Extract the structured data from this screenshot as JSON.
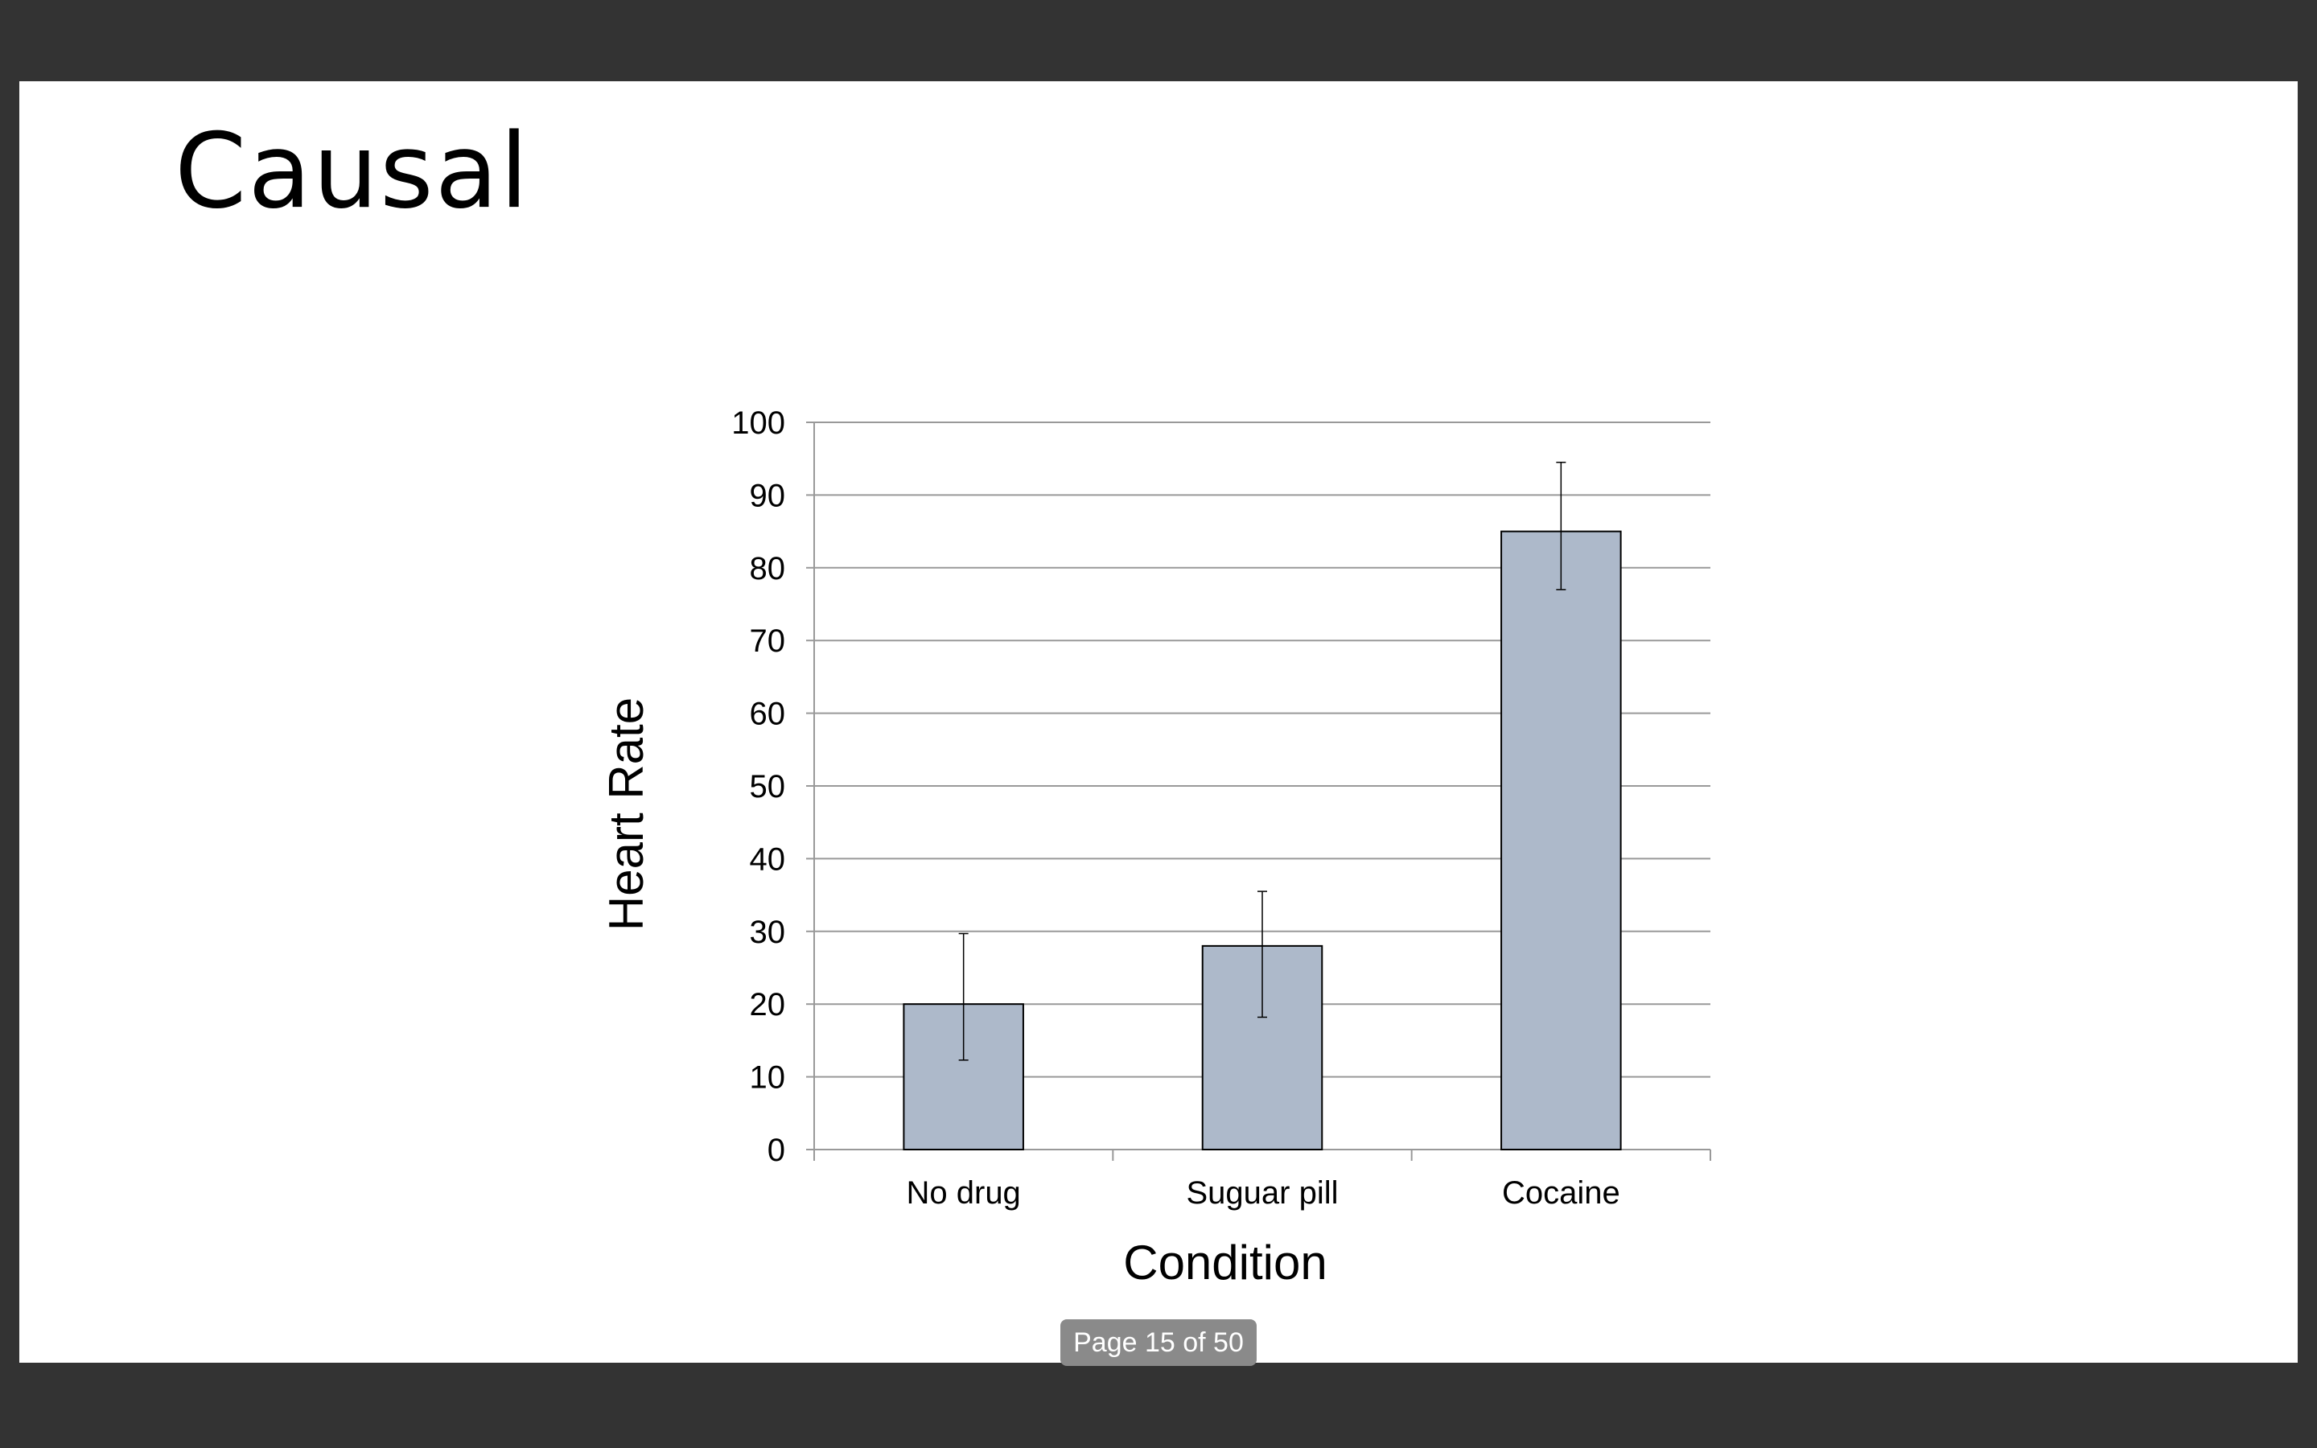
{
  "slide": {
    "title": "Causal"
  },
  "page_indicator": {
    "text": "Page 15 of 50"
  },
  "chart_data": {
    "type": "bar",
    "categories": [
      "No drug",
      "Suguar pill",
      "Cocaine"
    ],
    "values": [
      20,
      28,
      85
    ],
    "error_bars": [
      {
        "low": 12.3,
        "high": 29.7
      },
      {
        "low": 18.2,
        "high": 35.5
      },
      {
        "low": 77,
        "high": 94.5
      }
    ],
    "y_ticks": [
      "0",
      "10",
      "20",
      "30",
      "40",
      "50",
      "60",
      "70",
      "80",
      "90",
      "100"
    ],
    "xlabel": "Condition",
    "ylabel": "Heart Rate",
    "ylim": [
      0,
      100
    ],
    "grid": "horizontal",
    "legend": "none",
    "bar_color": "#adb9ca",
    "bar_edge_color": "#000000",
    "gridline_color": "#999999"
  }
}
